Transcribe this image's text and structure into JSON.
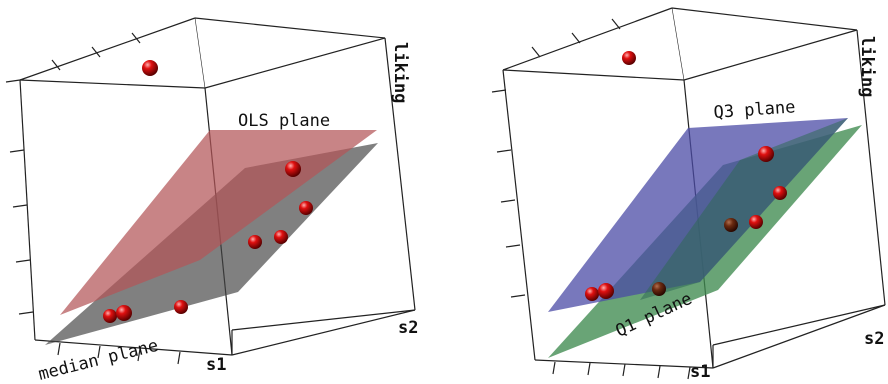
{
  "chart_data": [
    {
      "type": "scatter3d",
      "title": "",
      "axes": {
        "x": "s1",
        "y": "s2",
        "z": "liking"
      },
      "planes": [
        {
          "label": "OLS plane",
          "color": "#b35558",
          "opacity": 0.72
        },
        {
          "label": "median plane",
          "color": "#444444",
          "opacity": 0.68
        }
      ],
      "point_color": "#cc0000",
      "points_note": "9 observations shown as red spheres"
    },
    {
      "type": "scatter3d",
      "title": "",
      "axes": {
        "x": "s1",
        "y": "s2",
        "z": "liking"
      },
      "planes": [
        {
          "label": "Q3 plane",
          "color": "#4b4ba6",
          "opacity": 0.75
        },
        {
          "label": "Q1 plane",
          "color": "#3f8a4f",
          "opacity": 0.75
        }
      ],
      "point_color": "#cc0000",
      "points_note": "9 observations shown as red spheres"
    }
  ]
}
